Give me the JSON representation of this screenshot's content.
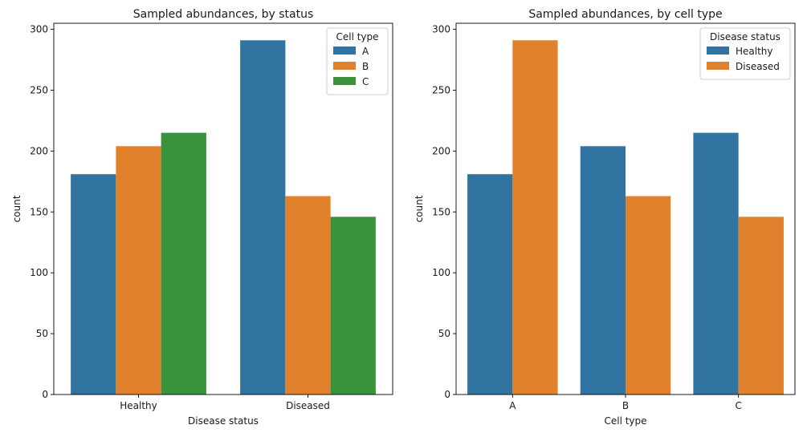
{
  "chart_data": [
    {
      "type": "bar",
      "title": "Sampled abundances, by status",
      "xlabel": "Disease status",
      "ylabel": "count",
      "categories": [
        "Healthy",
        "Diseased"
      ],
      "ylim": [
        0,
        305
      ],
      "yticks": [
        0,
        50,
        100,
        150,
        200,
        250,
        300
      ],
      "grid": false,
      "legend": {
        "title": "Cell type",
        "placement": "top-right"
      },
      "series": [
        {
          "name": "A",
          "color": "#3274a1",
          "values": [
            181,
            291
          ]
        },
        {
          "name": "B",
          "color": "#e1812c",
          "values": [
            204,
            163
          ]
        },
        {
          "name": "C",
          "color": "#3a923a",
          "values": [
            215,
            146
          ]
        }
      ]
    },
    {
      "type": "bar",
      "title": "Sampled abundances, by cell type",
      "xlabel": "Cell type",
      "ylabel": "count",
      "categories": [
        "A",
        "B",
        "C"
      ],
      "ylim": [
        0,
        305
      ],
      "yticks": [
        0,
        50,
        100,
        150,
        200,
        250,
        300
      ],
      "grid": false,
      "legend": {
        "title": "Disease status",
        "placement": "top-right"
      },
      "series": [
        {
          "name": "Healthy",
          "color": "#3274a1",
          "values": [
            181,
            204,
            215
          ]
        },
        {
          "name": "Diseased",
          "color": "#e1812c",
          "values": [
            291,
            163,
            146
          ]
        }
      ]
    }
  ]
}
